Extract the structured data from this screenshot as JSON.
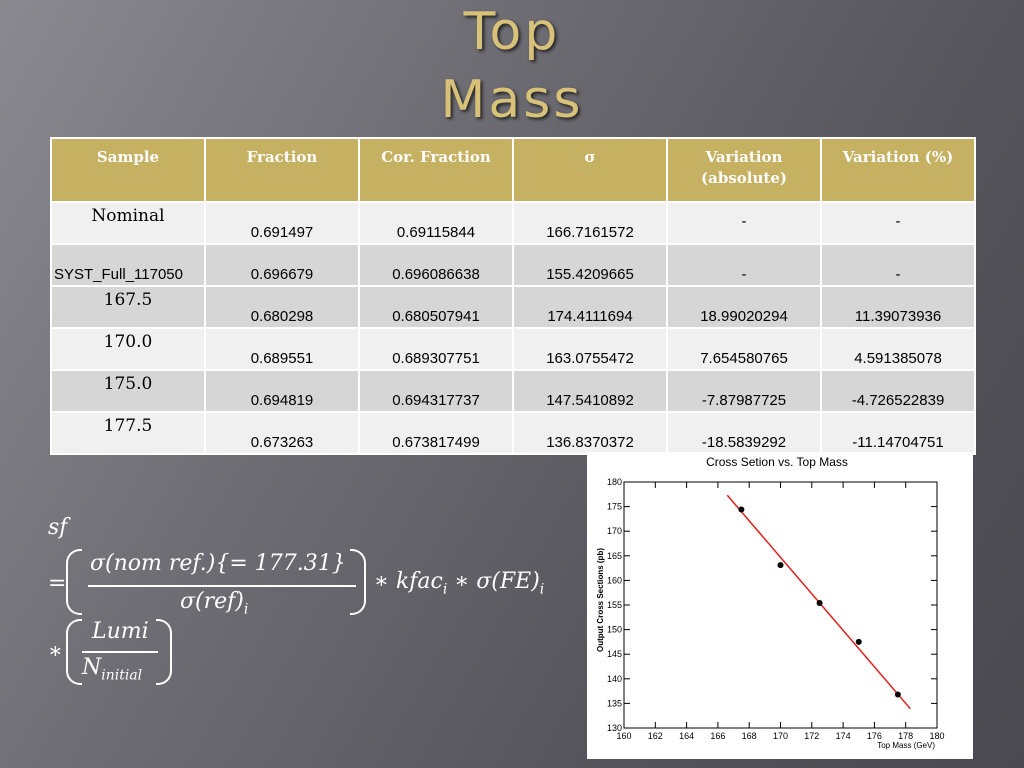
{
  "title": {
    "line1": "Top",
    "line2": "Mass"
  },
  "table": {
    "headers": [
      "Sample",
      "Fraction",
      "Cor. Fraction",
      "σ",
      "Variation (absolute)",
      "Variation (%)"
    ],
    "rows": [
      {
        "sample": "Nominal",
        "fraction": "0.691497",
        "cor_fraction": "0.69115844",
        "sigma": "166.7161572",
        "var_abs": "-",
        "var_pct": "-"
      },
      {
        "sample": "SYST_Full_117050",
        "fraction": "0.696679",
        "cor_fraction": "0.696086638",
        "sigma": "155.4209665",
        "var_abs": "-",
        "var_pct": "-"
      },
      {
        "sample": "167.5",
        "fraction": "0.680298",
        "cor_fraction": "0.680507941",
        "sigma": "174.4111694",
        "var_abs": "18.99020294",
        "var_pct": "11.39073936"
      },
      {
        "sample": "170.0",
        "fraction": "0.689551",
        "cor_fraction": "0.689307751",
        "sigma": "163.0755472",
        "var_abs": "7.654580765",
        "var_pct": "4.591385078"
      },
      {
        "sample": "175.0",
        "fraction": "0.694819",
        "cor_fraction": "0.694317737",
        "sigma": "147.5410892",
        "var_abs": "-7.87987725",
        "var_pct": "-4.726522839"
      },
      {
        "sample": "177.5",
        "fraction": "0.673263",
        "cor_fraction": "0.673817499",
        "sigma": "136.8370372",
        "var_abs": "-18.5839292",
        "var_pct": "-11.14704751"
      }
    ]
  },
  "formula": {
    "lhs": "sf",
    "eq": "=",
    "num": "σ(nom ref.){= 177.31}",
    "den": "σ(ref)",
    "den_sub": "i",
    "mid": "∗ kfac",
    "mid_sub": "i",
    "mid2": " ∗ σ(FE)",
    "mid2_sub": "i",
    "star": "∗",
    "num2": "Lumi",
    "den2": "N",
    "den2_sub": "initial"
  },
  "chart_data": {
    "type": "scatter",
    "title": "Cross Setion vs. Top Mass",
    "xlabel": "Top Mass (GeV)",
    "ylabel": "Output Cross Sections (pb)",
    "xlim": [
      160,
      180
    ],
    "ylim": [
      130,
      180
    ],
    "xticks": [
      160,
      162,
      164,
      166,
      168,
      170,
      172,
      174,
      176,
      178,
      180
    ],
    "yticks": [
      130,
      135,
      140,
      145,
      150,
      155,
      160,
      165,
      170,
      175,
      180
    ],
    "points": [
      {
        "x": 167.5,
        "y": 174.4
      },
      {
        "x": 170.0,
        "y": 163.1
      },
      {
        "x": 172.5,
        "y": 155.4
      },
      {
        "x": 175.0,
        "y": 147.5
      },
      {
        "x": 177.5,
        "y": 136.8
      }
    ],
    "fit_line": {
      "x": [
        166.6,
        178.3
      ],
      "y": [
        177.3,
        133.9
      ]
    },
    "point_color": "#000000",
    "line_color": "#e0201a"
  }
}
